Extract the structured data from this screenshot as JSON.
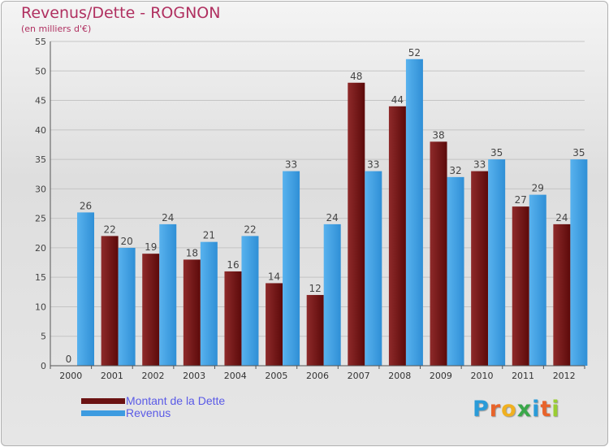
{
  "chart_data": {
    "type": "bar",
    "title": "Revenus/Dette - ROGNON",
    "subtitle": "(en milliers d'€)",
    "categories": [
      "2000",
      "2001",
      "2002",
      "2003",
      "2004",
      "2005",
      "2006",
      "2007",
      "2008",
      "2009",
      "2010",
      "2011",
      "2012"
    ],
    "series": [
      {
        "name": "Montant de la Dette",
        "color": "#6b1212",
        "values": [
          0,
          22,
          19,
          18,
          16,
          14,
          12,
          48,
          44,
          38,
          33,
          27,
          24
        ]
      },
      {
        "name": "Revenus",
        "color": "#3d9be0",
        "values": [
          26,
          20,
          24,
          21,
          22,
          33,
          24,
          33,
          52,
          32,
          35,
          29,
          35
        ]
      }
    ],
    "ylim": [
      0,
      55
    ],
    "yticks": [
      0,
      5,
      10,
      15,
      20,
      25,
      30,
      35,
      40,
      45,
      50,
      55
    ],
    "grid": true,
    "legend": "bottom-left"
  },
  "logo_text": "Proxiti"
}
